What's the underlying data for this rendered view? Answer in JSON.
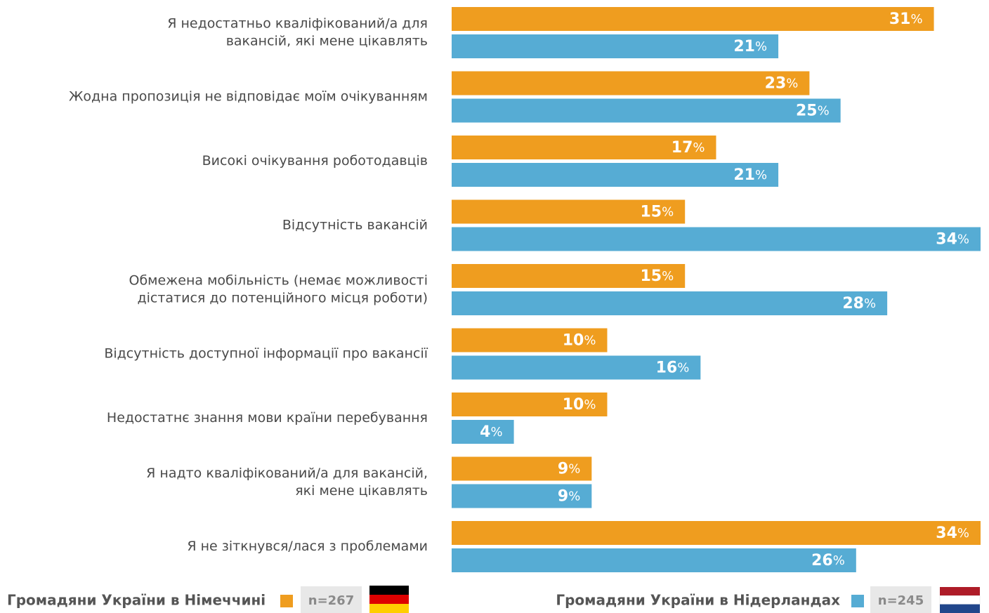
{
  "chart_data": {
    "type": "bar",
    "orientation": "horizontal",
    "categories": [
      "Я недостатньо кваліфікований/а для\nвакансій, які мене цікавлять",
      "Жодна пропозиція не відповідає моїм очікуванням",
      "Високі очікування роботодавців",
      "Відсутність вакансій",
      "Обмежена мобільність (немає можливості\nдістатися до потенційного місця роботи)",
      "Відсутність доступної інформації про вакансії",
      "Недостатнє знання мови країни перебування",
      "Я надто кваліфікований/а для вакансій,\nякі мене цікавлять",
      "Я не зіткнувся/лася з проблемами"
    ],
    "series": [
      {
        "name": "Громадяни України в Німеччині",
        "n_label": "n=267",
        "color": "#ef9d1f",
        "values": [
          31,
          23,
          17,
          15,
          15,
          10,
          10,
          9,
          34
        ],
        "value_labels": [
          "31%",
          "23%",
          "17%",
          "15%",
          "15%",
          "10%",
          "10%",
          "9%",
          "34%"
        ]
      },
      {
        "name": "Громадяни України в Нідерландах",
        "n_label": "n=245",
        "color": "#56acd4",
        "values": [
          21,
          25,
          21,
          34,
          28,
          16,
          4,
          9,
          26
        ],
        "value_labels": [
          "21%",
          "25%",
          "21%",
          "34%",
          "28%",
          "16%",
          "4%",
          "9%",
          "26%"
        ]
      }
    ],
    "xlim": [
      0,
      34
    ]
  }
}
